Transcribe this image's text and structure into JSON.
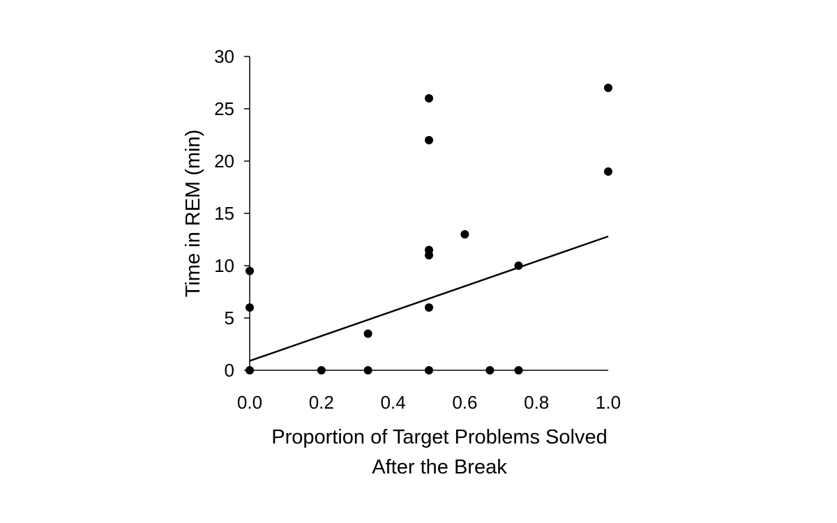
{
  "chart_data": {
    "type": "scatter",
    "title": "",
    "xlabel_lines": [
      "Proportion of Target Problems Solved",
      "After the Break"
    ],
    "ylabel": "Time in REM (min)",
    "xlim": [
      0,
      1
    ],
    "ylim": [
      0,
      30
    ],
    "x_ticks": [
      "0.0",
      "0.2",
      "0.4",
      "0.6",
      "0.8",
      "1.0"
    ],
    "y_ticks": [
      "0",
      "5",
      "10",
      "15",
      "20",
      "25",
      "30"
    ],
    "grid": false,
    "legend": "none",
    "points": [
      {
        "x": 0.0,
        "y": 0
      },
      {
        "x": 0.0,
        "y": 6
      },
      {
        "x": 0.0,
        "y": 9.5
      },
      {
        "x": 0.2,
        "y": 0
      },
      {
        "x": 0.33,
        "y": 0
      },
      {
        "x": 0.33,
        "y": 3.5
      },
      {
        "x": 0.5,
        "y": 0
      },
      {
        "x": 0.5,
        "y": 6
      },
      {
        "x": 0.5,
        "y": 11
      },
      {
        "x": 0.5,
        "y": 11.5
      },
      {
        "x": 0.5,
        "y": 22
      },
      {
        "x": 0.5,
        "y": 26
      },
      {
        "x": 0.6,
        "y": 13
      },
      {
        "x": 0.67,
        "y": 0
      },
      {
        "x": 0.75,
        "y": 0
      },
      {
        "x": 0.75,
        "y": 10
      },
      {
        "x": 1.0,
        "y": 19
      },
      {
        "x": 1.0,
        "y": 27
      }
    ],
    "trendline": {
      "x": [
        0,
        1
      ],
      "y": [
        0.9,
        12.8
      ]
    },
    "marker_color": "#000000",
    "line_color": "#000000"
  }
}
